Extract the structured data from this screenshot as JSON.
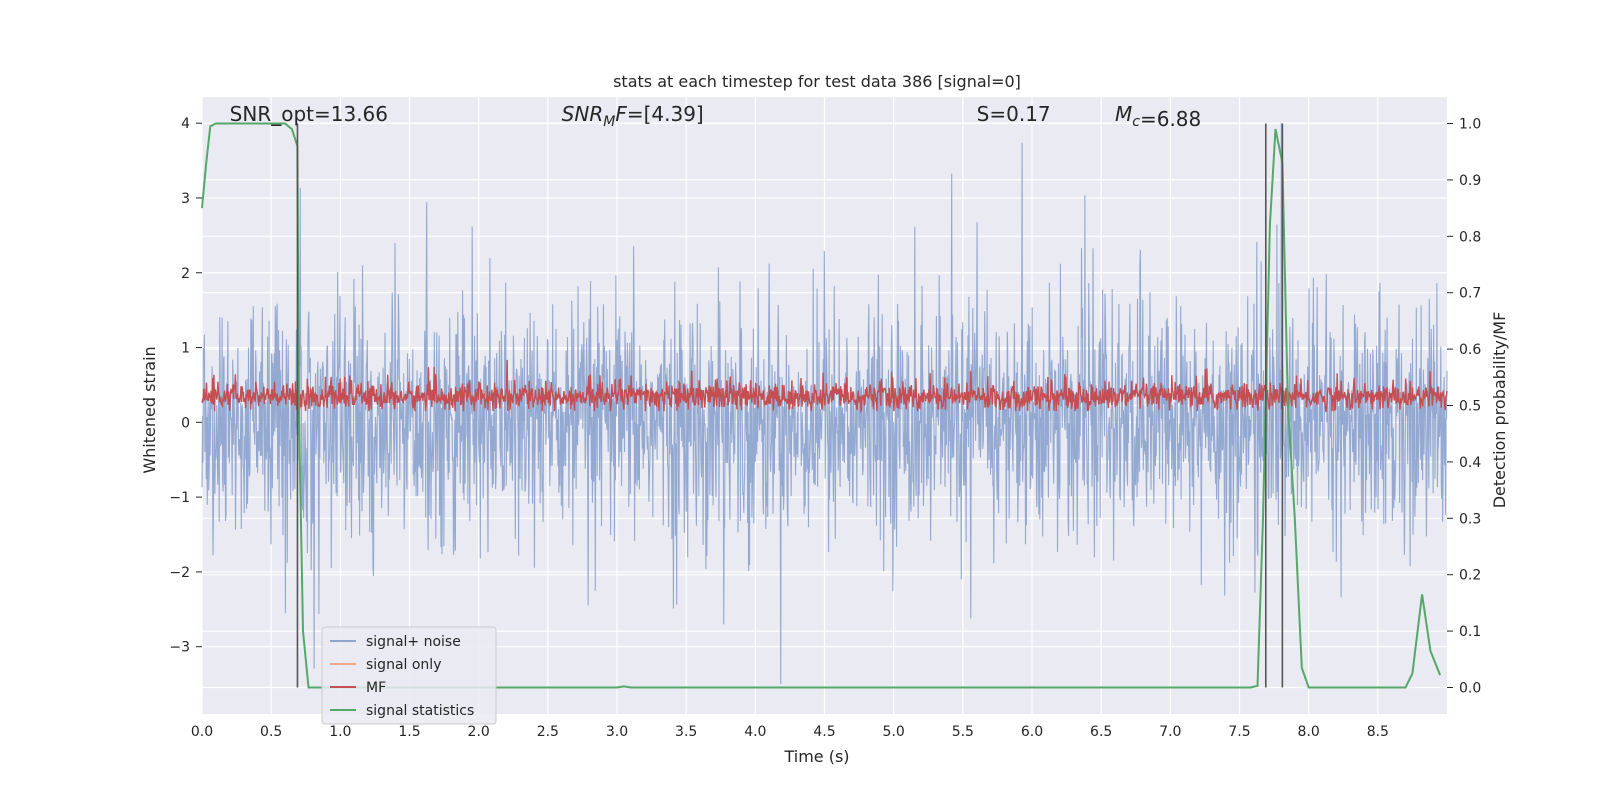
{
  "chart_data": {
    "type": "line",
    "title": "stats at each timestep for test data 386 [signal=0]",
    "xlabel": "Time (s)",
    "ylabel_left": "Whitened strain",
    "ylabel_right": "Detection probability/MF",
    "xlim": [
      0.0,
      9.0
    ],
    "ylim_left": [
      -3.9,
      4.35
    ],
    "ylim_right": [
      -0.047,
      1.047
    ],
    "x_ticks": [
      "0.0",
      "0.5",
      "1.0",
      "1.5",
      "2.0",
      "2.5",
      "3.0",
      "3.5",
      "4.0",
      "4.5",
      "5.0",
      "5.5",
      "6.0",
      "6.5",
      "7.0",
      "7.5",
      "8.0",
      "8.5"
    ],
    "left_ticks": [
      "4",
      "3",
      "2",
      "1",
      "0",
      "−1",
      "−2",
      "−3"
    ],
    "right_ticks": [
      "1.0",
      "0.9",
      "0.8",
      "0.7",
      "0.6",
      "0.5",
      "0.4",
      "0.3",
      "0.2",
      "0.1",
      "0.0"
    ],
    "annotations": [
      {
        "prefix": "SNR_opt",
        "value": "=13.66",
        "x": 0.2
      },
      {
        "prefix": "SNR",
        "sub": "M",
        "suffix": "F",
        "value": "=[4.39]",
        "x": 2.6
      },
      {
        "prefix": "S",
        "value": "=0.17",
        "x": 5.6
      },
      {
        "prefix": "M",
        "sub": "c",
        "value": "=6.88",
        "x": 6.6
      }
    ],
    "legend": {
      "placement": "lower-left",
      "entries": [
        {
          "label": "signal+ noise",
          "color": "#8fa5cf"
        },
        {
          "label": "signal only",
          "color": "#f0a58a"
        },
        {
          "label": "MF",
          "color": "#c44e52"
        },
        {
          "label": "signal statistics",
          "color": "#55a868"
        }
      ]
    },
    "series": [
      {
        "name": "signal+ noise",
        "axis": "left",
        "color": "#8fa5cf",
        "envelope_description": "dense noise roughly between -2 and 2 over the whole time range",
        "typical_range": [
          -1.5,
          1.5
        ],
        "max": 4.0,
        "min": -3.5
      },
      {
        "name": "MF",
        "axis": "right",
        "color": "#c44e52",
        "typical_range": [
          0.49,
          0.56
        ],
        "max": 0.6
      },
      {
        "name": "signal statistics",
        "axis": "right",
        "color": "#55a868",
        "x": [
          0.0,
          0.03,
          0.06,
          0.1,
          0.15,
          0.2,
          0.3,
          0.4,
          0.5,
          0.6,
          0.65,
          0.69,
          0.7,
          0.73,
          0.77,
          1.0,
          2.0,
          3.0,
          3.05,
          3.1,
          4.0,
          5.0,
          6.0,
          7.0,
          7.5,
          7.58,
          7.63,
          7.67,
          7.72,
          7.76,
          7.81,
          7.85,
          7.9,
          7.95,
          8.0,
          8.5,
          8.7,
          8.75,
          8.82,
          8.88,
          8.95
        ],
        "y": [
          0.85,
          0.93,
          0.995,
          1.0,
          1.0,
          1.0,
          1.0,
          1.0,
          1.0,
          1.0,
          0.99,
          0.96,
          0.5,
          0.1,
          0.0,
          0.0,
          0.0,
          0.0,
          0.002,
          0.0,
          0.0,
          0.0,
          0.0,
          0.0,
          0.0,
          0.0,
          0.003,
          0.3,
          0.82,
          0.99,
          0.93,
          0.5,
          0.3,
          0.035,
          0.0,
          0.0,
          0.0,
          0.025,
          0.165,
          0.065,
          0.022
        ]
      }
    ],
    "vertical_lines": [
      {
        "x": 0.69,
        "axis": "right",
        "ymin": 0.0,
        "ymax": 1.0
      },
      {
        "x": 7.69,
        "axis": "right",
        "ymin": 0.0,
        "ymax": 1.0
      },
      {
        "x": 7.81,
        "axis": "right",
        "ymin": 0.0,
        "ymax": 1.0
      }
    ],
    "grid": true
  },
  "style": {
    "plot_background": "#eaeaf2",
    "grid_color": "#ffffff",
    "text_color": "#262626",
    "vline_color": "#555555"
  }
}
